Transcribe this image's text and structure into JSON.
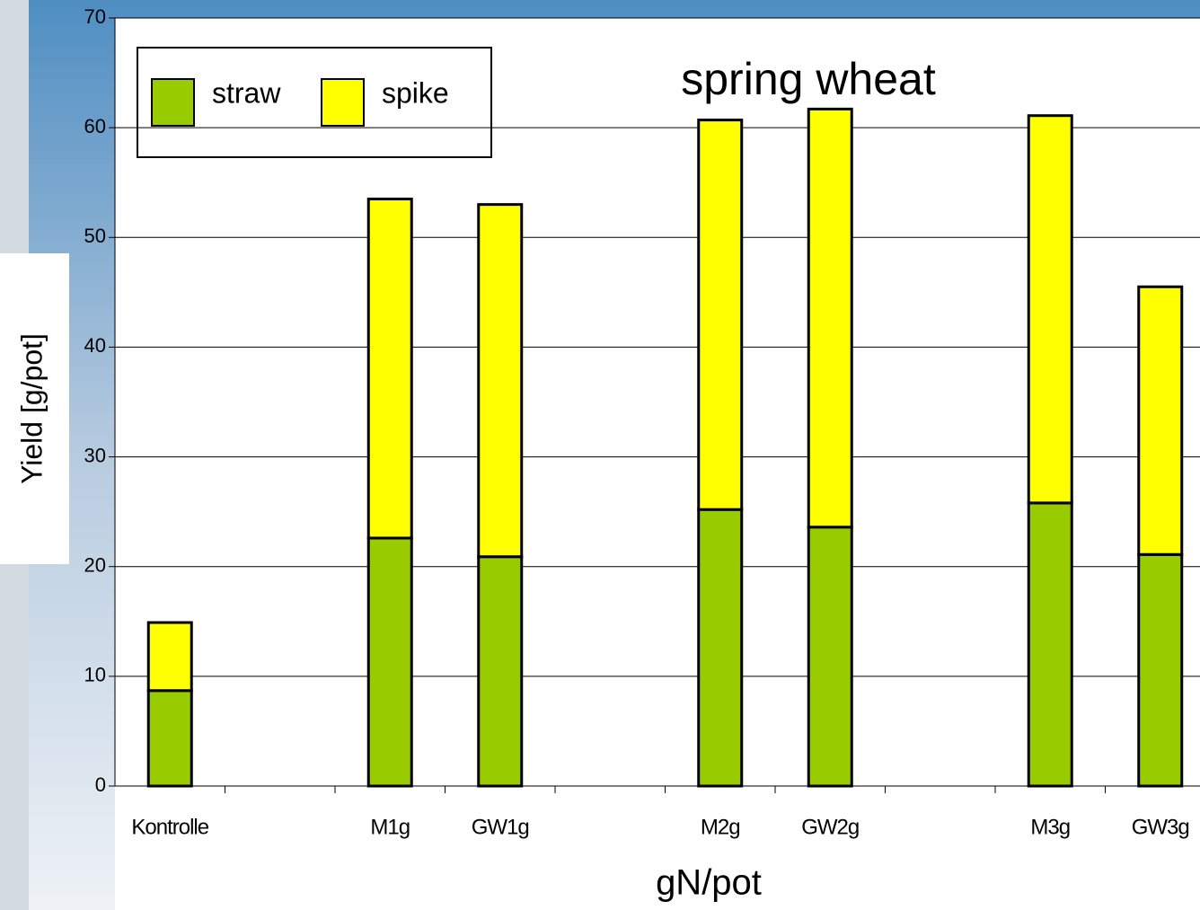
{
  "chart_data": {
    "type": "bar",
    "stacked": true,
    "title": "spring wheat",
    "x_label": "gN/pot",
    "y_label": "Yield [g/pot]",
    "categories": [
      "Kontrolle",
      null,
      "M1g",
      "GW1g",
      null,
      "M2g",
      "GW2g",
      null,
      "M3g",
      "GW3g"
    ],
    "series": [
      {
        "name": "straw",
        "color": "#99cc00",
        "values": [
          8.7,
          null,
          22.6,
          20.9,
          null,
          25.2,
          23.6,
          null,
          25.8,
          21.1
        ]
      },
      {
        "name": "spike",
        "color": "#ffff00",
        "values": [
          6.2,
          null,
          30.9,
          32.1,
          null,
          35.5,
          38.1,
          null,
          35.3,
          24.4
        ]
      }
    ],
    "ylim": [
      0,
      70
    ],
    "yticks": [
      0,
      10,
      20,
      30,
      40,
      50,
      60,
      70
    ],
    "grid": true,
    "legend": "top-left"
  }
}
